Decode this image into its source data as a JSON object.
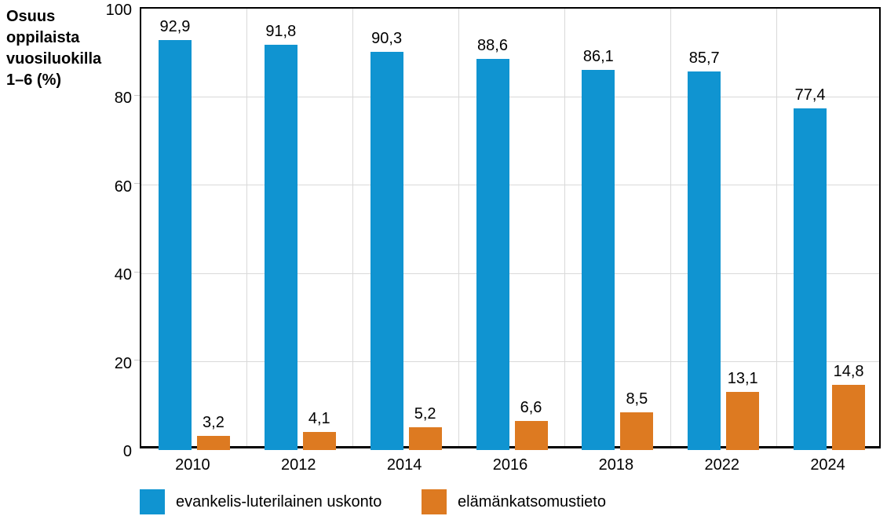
{
  "chart_data": {
    "type": "bar",
    "title": "",
    "ylabel_lines": [
      "Osuus",
      "oppilaista",
      "vuosiluokilla",
      "1–6 (%)"
    ],
    "categories": [
      "2010",
      "2012",
      "2014",
      "2016",
      "2018",
      "2022",
      "2024"
    ],
    "series": [
      {
        "name": "evankelis-luterilainen uskonto",
        "color": "#1094d1",
        "values": [
          92.9,
          91.8,
          90.3,
          88.6,
          86.1,
          85.7,
          77.4
        ],
        "labels": [
          "92,9",
          "91,8",
          "90,3",
          "88,6",
          "86,1",
          "85,7",
          "77,4"
        ]
      },
      {
        "name": "elämänkatsomustieto",
        "color": "#dd7a21",
        "values": [
          3.2,
          4.1,
          5.2,
          6.6,
          8.5,
          13.1,
          14.8
        ],
        "labels": [
          "3,2",
          "4,1",
          "5,2",
          "6,6",
          "8,5",
          "13,1",
          "14,8"
        ]
      }
    ],
    "y_ticks": [
      0,
      20,
      40,
      60,
      80,
      100
    ],
    "y_tick_labels": [
      "0",
      "20",
      "40",
      "60",
      "80",
      "100"
    ],
    "ylim": [
      0,
      100
    ],
    "grid": true,
    "gridline_color": "#d9d9d9",
    "axis_color": "#000000",
    "legend_position": "bottom"
  }
}
